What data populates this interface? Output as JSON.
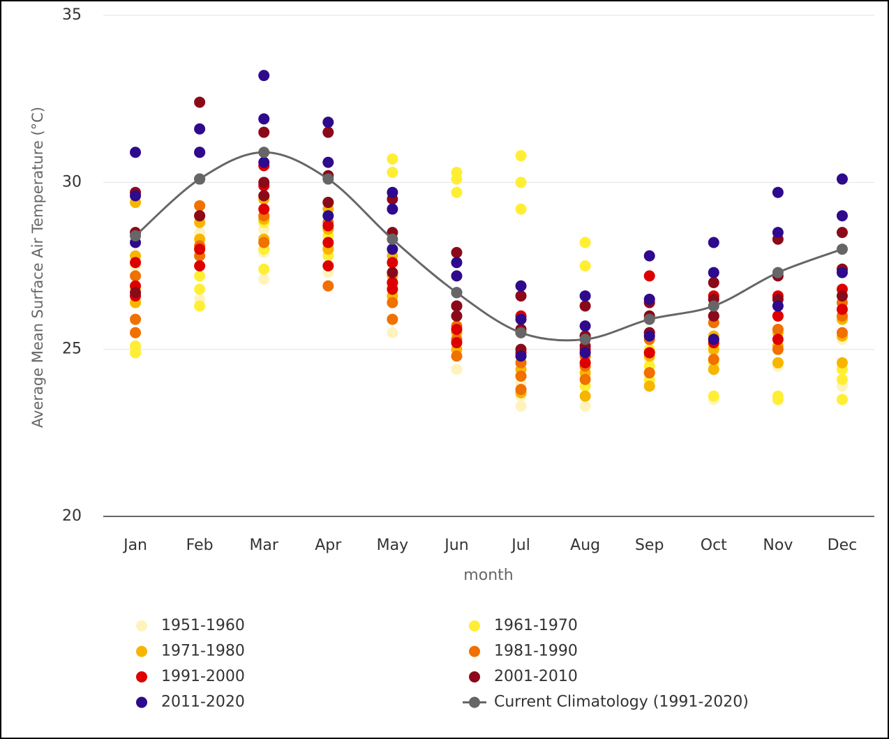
{
  "chart_data": {
    "type": "scatter",
    "ylabel": "Average Mean Surface Air Temperature (°C)",
    "xlabel": "month",
    "categories": [
      "Jan",
      "Feb",
      "Mar",
      "Apr",
      "May",
      "Jun",
      "Jul",
      "Aug",
      "Sep",
      "Oct",
      "Nov",
      "Dec"
    ],
    "ylim": [
      20,
      35
    ],
    "yticks": [
      20,
      25,
      30,
      35
    ],
    "grid": true,
    "series": [
      {
        "name": "1951-1960",
        "color": "#fff3bd",
        "values": [
          [
            25.0,
            26.5,
            27.5
          ],
          [
            26.5,
            27.5,
            28.5
          ],
          [
            27.1,
            27.9,
            28.6
          ],
          [
            27.3,
            28.0,
            28.6
          ],
          [
            25.5,
            26.5,
            27.5
          ],
          [
            24.4,
            24.8,
            25.2
          ],
          [
            23.3,
            23.6,
            24.0
          ],
          [
            23.3,
            23.6,
            24.2
          ],
          [
            24.0,
            24.3,
            24.7
          ],
          [
            23.5,
            24.4,
            24.9
          ],
          [
            23.5,
            24.5,
            25.0
          ],
          [
            23.9,
            24.4,
            25.3
          ]
        ]
      },
      {
        "name": "1961-1970",
        "color": "#ffee33",
        "values": [
          [
            24.9,
            25.1,
            26.8
          ],
          [
            26.3,
            26.8,
            27.2
          ],
          [
            27.4,
            28.0,
            28.8
          ],
          [
            27.8,
            28.1,
            28.4
          ],
          [
            30.3,
            30.7,
            26.9
          ],
          [
            29.7,
            30.1,
            30.3
          ],
          [
            29.2,
            30.0,
            30.8
          ],
          [
            27.5,
            28.2,
            23.9
          ],
          [
            24.1,
            24.5,
            25.0
          ],
          [
            23.6,
            24.6,
            25.1
          ],
          [
            23.5,
            23.6,
            24.6
          ],
          [
            23.5,
            24.1,
            24.4
          ]
        ]
      },
      {
        "name": "1971-1980",
        "color": "#f7b500",
        "values": [
          [
            26.4,
            27.8,
            29.4
          ],
          [
            28.0,
            28.3,
            28.8
          ],
          [
            28.3,
            28.9,
            29.5
          ],
          [
            28.0,
            28.6,
            29.2
          ],
          [
            26.6,
            27.2,
            27.8
          ],
          [
            25.0,
            25.5,
            26.0
          ],
          [
            23.7,
            24.4,
            24.8
          ],
          [
            23.6,
            24.3,
            24.6
          ],
          [
            23.9,
            24.3,
            24.8
          ],
          [
            24.4,
            25.0,
            25.4
          ],
          [
            24.6,
            25.1,
            25.5
          ],
          [
            24.6,
            25.4,
            25.9
          ]
        ]
      },
      {
        "name": "1981-1990",
        "color": "#f07000",
        "values": [
          [
            25.5,
            25.9,
            27.2
          ],
          [
            27.8,
            28.1,
            29.3
          ],
          [
            28.2,
            29.0,
            29.6
          ],
          [
            26.9,
            28.8,
            29.4
          ],
          [
            25.9,
            26.4,
            27.0
          ],
          [
            24.8,
            25.3,
            25.7
          ],
          [
            23.8,
            24.2,
            24.6
          ],
          [
            24.1,
            24.5,
            24.8
          ],
          [
            24.3,
            24.9,
            25.3
          ],
          [
            24.7,
            25.3,
            25.8
          ],
          [
            25.0,
            25.6,
            26.0
          ],
          [
            25.5,
            26.0,
            26.4
          ]
        ]
      },
      {
        "name": "1991-2000",
        "color": "#dd0000",
        "values": [
          [
            26.6,
            26.9,
            27.6
          ],
          [
            27.5,
            28.0,
            29.0
          ],
          [
            29.2,
            29.9,
            30.5
          ],
          [
            27.5,
            28.2,
            28.7
          ],
          [
            26.8,
            27.0,
            27.6
          ],
          [
            25.2,
            25.6,
            26.3
          ],
          [
            24.9,
            25.5,
            26.0
          ],
          [
            24.6,
            25.0,
            25.4
          ],
          [
            24.9,
            25.5,
            27.2
          ],
          [
            25.2,
            26.0,
            26.6
          ],
          [
            25.3,
            26.0,
            26.6
          ],
          [
            26.2,
            26.8,
            27.4
          ]
        ]
      },
      {
        "name": "2001-2010",
        "color": "#8b0a1a",
        "values": [
          [
            26.7,
            28.5,
            29.7
          ],
          [
            29.0,
            30.9,
            32.4
          ],
          [
            29.6,
            30.0,
            31.5
          ],
          [
            29.4,
            30.2,
            31.5
          ],
          [
            27.3,
            28.5,
            29.5
          ],
          [
            26.0,
            26.3,
            27.9
          ],
          [
            25.0,
            25.6,
            26.6
          ],
          [
            25.1,
            25.4,
            26.3
          ],
          [
            25.5,
            26.0,
            26.4
          ],
          [
            26.0,
            26.5,
            27.0
          ],
          [
            26.5,
            27.2,
            28.3
          ],
          [
            26.6,
            27.4,
            28.5
          ]
        ]
      },
      {
        "name": "2011-2020",
        "color": "#2e0a8c",
        "values": [
          [
            28.2,
            29.6,
            30.9
          ],
          [
            30.1,
            30.9,
            31.6
          ],
          [
            30.6,
            31.9,
            33.2
          ],
          [
            29.0,
            30.6,
            31.8
          ],
          [
            28.0,
            29.2,
            29.7
          ],
          [
            26.7,
            27.2,
            27.6
          ],
          [
            24.8,
            25.9,
            26.9
          ],
          [
            24.9,
            25.7,
            26.6
          ],
          [
            25.4,
            26.5,
            27.8
          ],
          [
            25.3,
            27.3,
            28.2
          ],
          [
            26.3,
            28.5,
            29.7
          ],
          [
            27.3,
            29.0,
            30.1
          ]
        ]
      },
      {
        "name": "Current Climatology (1991-2020)",
        "color": "#666666",
        "type": "line",
        "values": [
          28.4,
          30.1,
          30.9,
          30.1,
          28.3,
          26.7,
          25.5,
          25.3,
          25.9,
          26.3,
          27.3,
          28.0
        ]
      }
    ]
  }
}
